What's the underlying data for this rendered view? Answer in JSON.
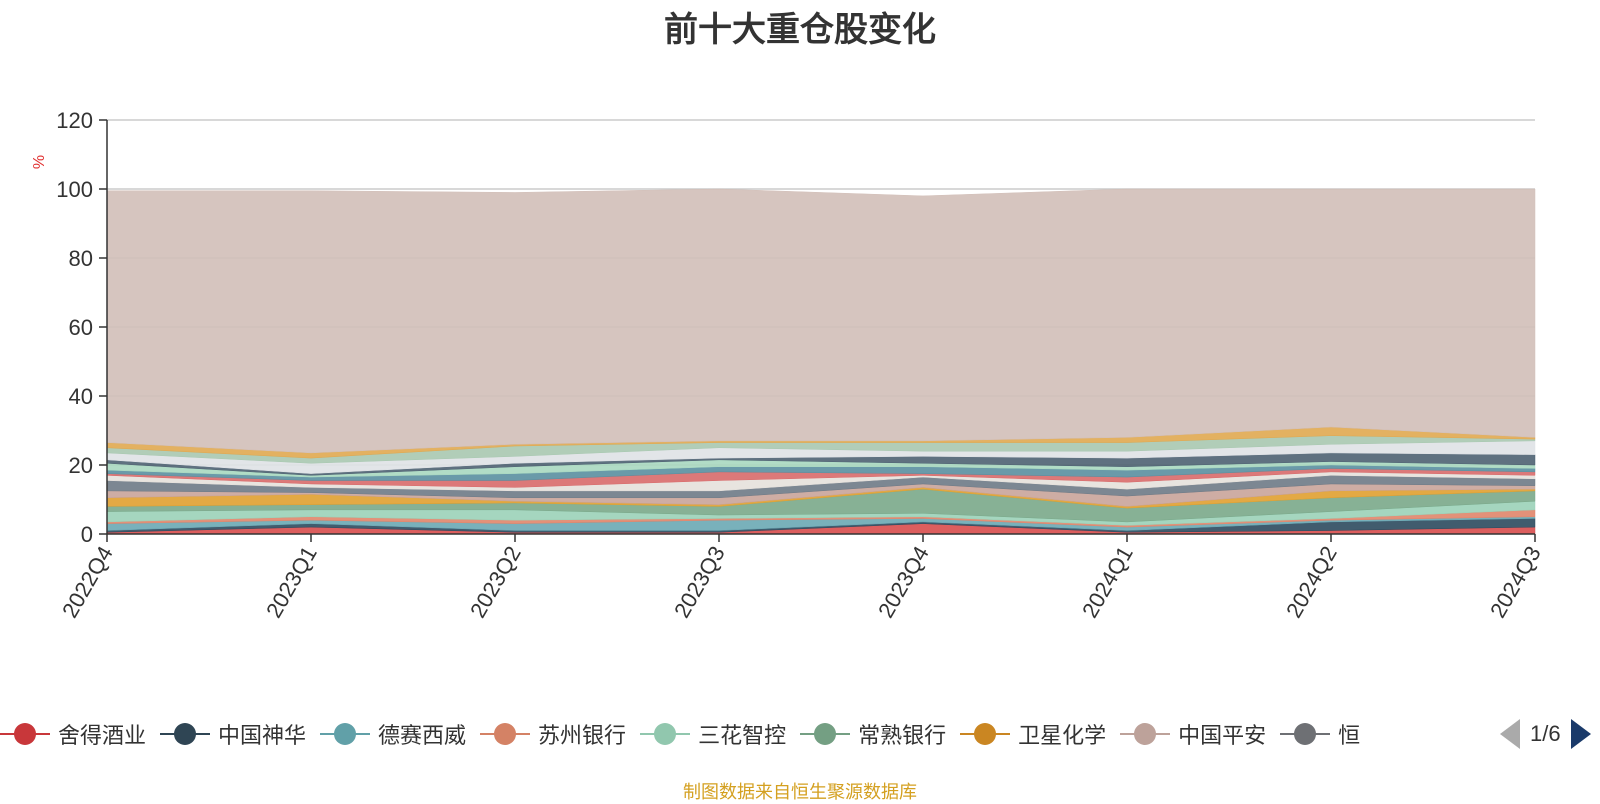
{
  "chart_data": {
    "type": "area",
    "stacked": true,
    "title": "前十大重仓股变化",
    "ylabel": "%",
    "xlabel": "",
    "ylim": [
      0,
      120
    ],
    "yticks": [
      0,
      20,
      40,
      60,
      80,
      100,
      120
    ],
    "grid": true,
    "categories": [
      "2022Q4",
      "2023Q1",
      "2023Q2",
      "2023Q3",
      "2023Q4",
      "2024Q1",
      "2024Q2",
      "2024Q3"
    ],
    "series": [
      {
        "name": "舍得酒业",
        "color": "#d84c4c",
        "values": [
          0.5,
          2.0,
          0.5,
          0.5,
          3.0,
          0.5,
          1.0,
          2.0
        ]
      },
      {
        "name": "中国神华",
        "color": "#2c4a5e",
        "values": [
          0.5,
          1.0,
          0.5,
          0.5,
          0.5,
          0.5,
          2.5,
          2.5
        ]
      },
      {
        "name": "德赛西威",
        "color": "#6aa8b4",
        "values": [
          2.0,
          1.0,
          2.0,
          3.0,
          1.0,
          1.0,
          0.5,
          0.5
        ]
      },
      {
        "name": "苏州银行",
        "color": "#e0856a",
        "values": [
          0.5,
          1.0,
          1.0,
          0.5,
          0.5,
          0.5,
          0.5,
          2.0
        ]
      },
      {
        "name": "三花智控",
        "color": "#9bd1b8",
        "values": [
          3.0,
          2.0,
          3.0,
          1.0,
          1.0,
          1.0,
          2.0,
          2.5
        ]
      },
      {
        "name": "常熟银行",
        "color": "#7aa88a",
        "values": [
          1.5,
          1.5,
          2.0,
          2.5,
          7.0,
          4.0,
          4.0,
          3.0
        ]
      },
      {
        "name": "卫星化学",
        "color": "#e0a030",
        "values": [
          2.5,
          3.0,
          0.5,
          0.5,
          0.5,
          0.5,
          2.0,
          0.5
        ]
      },
      {
        "name": "中国平安",
        "color": "#c9a49a",
        "values": [
          2.0,
          0.5,
          1.0,
          2.0,
          1.0,
          3.0,
          2.0,
          1.0
        ]
      },
      {
        "name": "恒",
        "color": "#6e7a86",
        "values": [
          3.0,
          1.5,
          2.0,
          2.0,
          2.0,
          2.0,
          2.5,
          2.0
        ]
      },
      {
        "name": "",
        "color": "#e6e1dc",
        "values": [
          1.5,
          1.0,
          1.0,
          3.0,
          0.5,
          2.0,
          1.0,
          1.0
        ]
      },
      {
        "name": "",
        "color": "#d86a6a",
        "values": [
          0.5,
          1.0,
          2.0,
          2.5,
          0.5,
          1.5,
          1.0,
          1.0
        ]
      },
      {
        "name": "",
        "color": "#5a8fa0",
        "values": [
          1.0,
          1.0,
          2.0,
          1.5,
          2.0,
          2.0,
          1.0,
          1.0
        ]
      },
      {
        "name": "",
        "color": "#a8d8c0",
        "values": [
          2.0,
          0.5,
          2.0,
          2.0,
          1.0,
          1.0,
          1.0,
          1.0
        ]
      },
      {
        "name": "",
        "color": "#4e6272",
        "values": [
          1.0,
          0.5,
          1.0,
          0.5,
          2.0,
          2.5,
          2.5,
          3.0
        ]
      },
      {
        "name": "",
        "color": "#dfe2e6",
        "values": [
          2.0,
          3.0,
          2.0,
          3.0,
          1.5,
          2.0,
          2.5,
          4.0
        ]
      },
      {
        "name": "",
        "color": "#a8c8b0",
        "values": [
          1.5,
          1.5,
          3.0,
          1.5,
          2.5,
          2.5,
          2.5,
          0.5
        ]
      },
      {
        "name": "",
        "color": "#e0a850",
        "values": [
          1.5,
          1.5,
          0.5,
          0.5,
          0.5,
          1.5,
          2.5,
          0.5
        ]
      },
      {
        "name": "",
        "color": "#d2bfb8",
        "values": [
          73.0,
          76.0,
          73.0,
          73.0,
          71.0,
          72.0,
          69.0,
          72.0
        ]
      }
    ],
    "legend_position": "bottom"
  },
  "legend": {
    "items": [
      {
        "name": "舍得酒业",
        "color": "#c8373a"
      },
      {
        "name": "中国神华",
        "color": "#2f4554"
      },
      {
        "name": "德赛西威",
        "color": "#61a0a8"
      },
      {
        "name": "苏州银行",
        "color": "#d48265"
      },
      {
        "name": "三花智控",
        "color": "#91c7ae"
      },
      {
        "name": "常熟银行",
        "color": "#749f83"
      },
      {
        "name": "卫星化学",
        "color": "#ca8622"
      },
      {
        "name": "中国平安",
        "color": "#bda29a"
      },
      {
        "name": "恒",
        "color": "#6e7074"
      }
    ],
    "page_text": "1/6"
  },
  "footer": {
    "source_text": "制图数据来自恒生聚源数据库"
  }
}
